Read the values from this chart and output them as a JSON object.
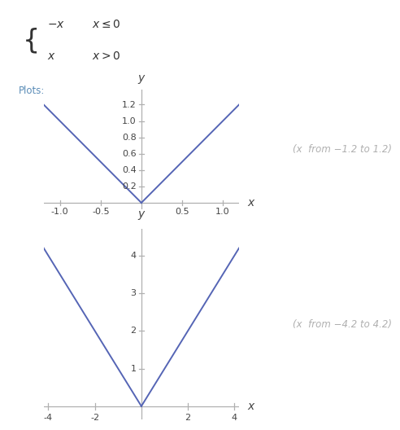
{
  "plot1": {
    "xmin": -1.2,
    "xmax": 1.2,
    "ymin": -0.08,
    "ymax": 1.38,
    "xticks": [
      -1.0,
      -0.5,
      0.5,
      1.0
    ],
    "yticks": [
      0.2,
      0.4,
      0.6,
      0.8,
      1.0,
      1.2
    ],
    "xtick_labels": [
      "-1.0",
      "-0.5",
      "0.5",
      "1.0"
    ],
    "ytick_labels": [
      "0.2",
      "0.4",
      "0.6",
      "0.8",
      "1.0",
      "1.2"
    ],
    "annotation": "(x  from −1.2 to 1.2)",
    "line_color": "#5565b5",
    "line_width": 1.4
  },
  "plot2": {
    "xmin": -4.2,
    "xmax": 4.2,
    "ymin": -0.35,
    "ymax": 4.7,
    "xticks": [
      -4,
      -2,
      2,
      4
    ],
    "yticks": [
      1,
      2,
      3,
      4
    ],
    "xtick_labels": [
      "-4",
      "-2",
      "2",
      "4"
    ],
    "ytick_labels": [
      "1",
      "2",
      "3",
      "4"
    ],
    "annotation": "(x  from −4.2 to 4.2)",
    "line_color": "#5565b5",
    "line_width": 1.4
  },
  "bg_color": "#ffffff",
  "axis_color": "#b0b0b0",
  "tick_color": "#444444",
  "tick_fontsize": 8,
  "annotation_color": "#b0b0b0",
  "annotation_fontsize": 8.5,
  "label_fontsize": 10,
  "formula_color": "#333333"
}
